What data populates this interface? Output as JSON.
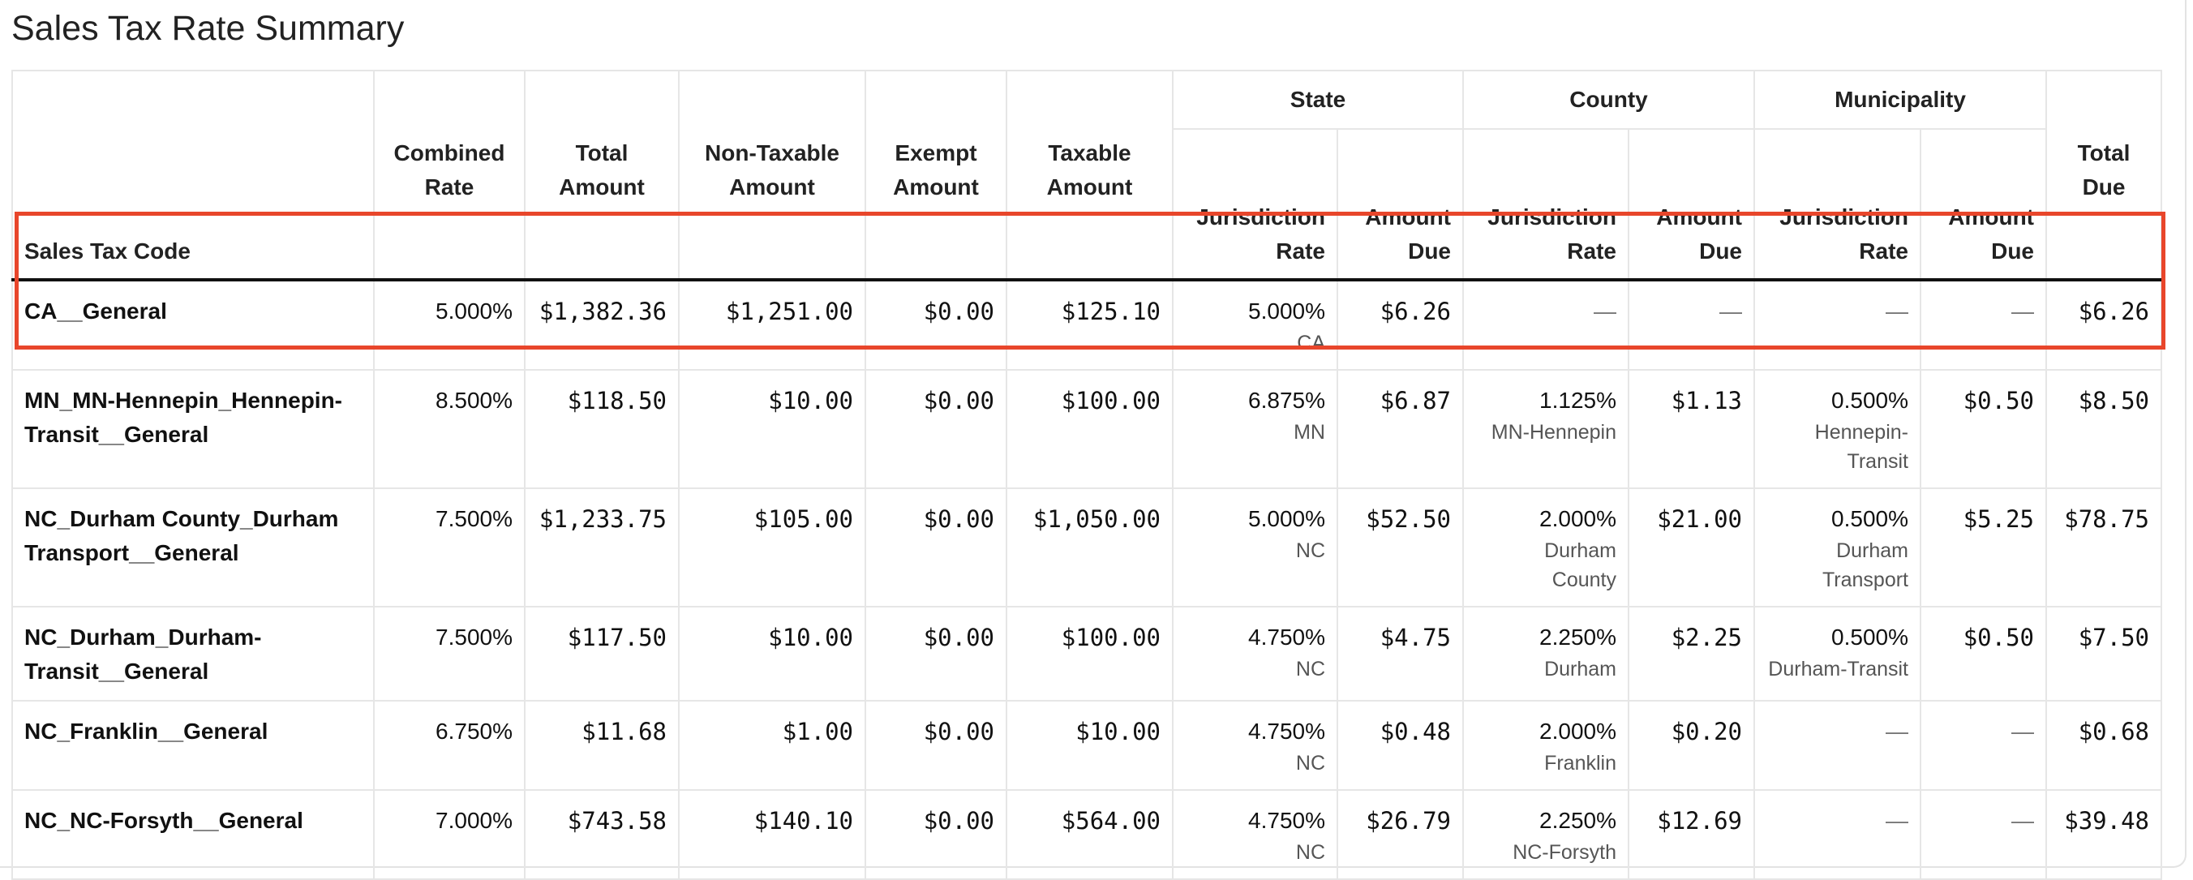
{
  "title": "Sales Tax Rate Summary",
  "headers": {
    "groups": {
      "state": "State",
      "county": "County",
      "municipality": "Municipality"
    },
    "code": "Sales Tax Code",
    "combined_rate": [
      "Combined",
      "Rate"
    ],
    "total_amount": [
      "Total",
      "Amount"
    ],
    "non_taxable": [
      "Non-Taxable",
      "Amount"
    ],
    "exempt": [
      "Exempt",
      "Amount"
    ],
    "taxable": [
      "Taxable",
      "Amount"
    ],
    "jurisdiction_rate": [
      "Jurisdiction",
      "Rate"
    ],
    "amount_due": [
      "Amount",
      "Due"
    ],
    "total_due": [
      "Total",
      "Due"
    ]
  },
  "rows": [
    {
      "code": "CA__General",
      "combined_rate": "5.000%",
      "total_amount": "$1,382.36",
      "non_taxable": "$1,251.00",
      "exempt": "$0.00",
      "taxable": "$125.10",
      "state_rate": "5.000%",
      "state_name": "CA",
      "state_due": "$6.26",
      "county_rate": "—",
      "county_name": "",
      "county_due": "—",
      "muni_rate": "—",
      "muni_name": "",
      "muni_due": "—",
      "total_due": "$6.26"
    },
    {
      "code": "MN_MN-Hennepin_Hennepin-Transit__General",
      "combined_rate": "8.500%",
      "total_amount": "$118.50",
      "non_taxable": "$10.00",
      "exempt": "$0.00",
      "taxable": "$100.00",
      "state_rate": "6.875%",
      "state_name": "MN",
      "state_due": "$6.87",
      "county_rate": "1.125%",
      "county_name": "MN-Hennepin",
      "county_due": "$1.13",
      "muni_rate": "0.500%",
      "muni_name": "Hennepin-Transit",
      "muni_due": "$0.50",
      "total_due": "$8.50"
    },
    {
      "code": "NC_Durham County_Durham Transport__General",
      "combined_rate": "7.500%",
      "total_amount": "$1,233.75",
      "non_taxable": "$105.00",
      "exempt": "$0.00",
      "taxable": "$1,050.00",
      "state_rate": "5.000%",
      "state_name": "NC",
      "state_due": "$52.50",
      "county_rate": "2.000%",
      "county_name": "Durham County",
      "county_due": "$21.00",
      "muni_rate": "0.500%",
      "muni_name": "Durham Transport",
      "muni_due": "$5.25",
      "total_due": "$78.75"
    },
    {
      "code": "NC_Durham_Durham-Transit__General",
      "combined_rate": "7.500%",
      "total_amount": "$117.50",
      "non_taxable": "$10.00",
      "exempt": "$0.00",
      "taxable": "$100.00",
      "state_rate": "4.750%",
      "state_name": "NC",
      "state_due": "$4.75",
      "county_rate": "2.250%",
      "county_name": "Durham",
      "county_due": "$2.25",
      "muni_rate": "0.500%",
      "muni_name": "Durham-Transit",
      "muni_due": "$0.50",
      "total_due": "$7.50"
    },
    {
      "code": "NC_Franklin__General",
      "combined_rate": "6.750%",
      "total_amount": "$11.68",
      "non_taxable": "$1.00",
      "exempt": "$0.00",
      "taxable": "$10.00",
      "state_rate": "4.750%",
      "state_name": "NC",
      "state_due": "$0.48",
      "county_rate": "2.000%",
      "county_name": "Franklin",
      "county_due": "$0.20",
      "muni_rate": "—",
      "muni_name": "",
      "muni_due": "—",
      "total_due": "$0.68"
    },
    {
      "code": "NC_NC-Forsyth__General",
      "combined_rate": "7.000%",
      "total_amount": "$743.58",
      "non_taxable": "$140.10",
      "exempt": "$0.00",
      "taxable": "$564.00",
      "state_rate": "4.750%",
      "state_name": "NC",
      "state_due": "$26.79",
      "county_rate": "2.250%",
      "county_name": "NC-Forsyth",
      "county_due": "$12.69",
      "muni_rate": "—",
      "muni_name": "",
      "muni_due": "—",
      "total_due": "$39.48"
    }
  ]
}
